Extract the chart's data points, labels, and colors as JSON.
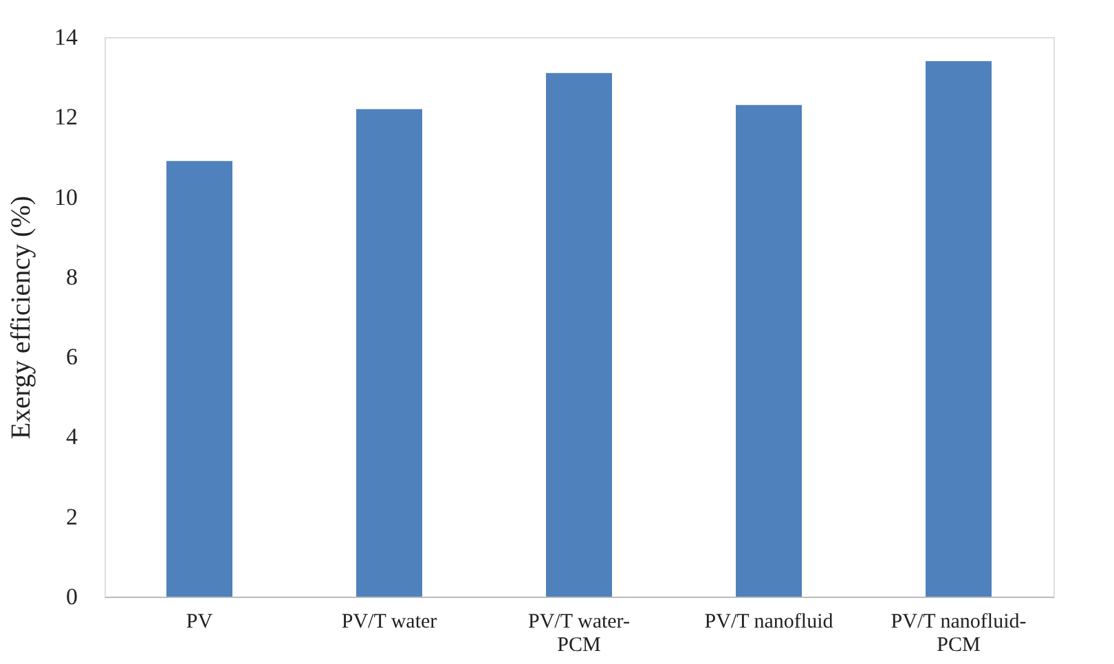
{
  "chart_data": {
    "type": "bar",
    "ylabel": "Exergy efficiency (%)",
    "categories": [
      "PV",
      "PV/T  water",
      "PV/T water-PCM",
      "PV/T nanofluid",
      "PV/T nanofluid-PCM"
    ],
    "values": [
      10.9,
      12.2,
      13.1,
      12.3,
      13.4
    ],
    "color": "#4f81bd",
    "ylim": [
      0,
      14
    ],
    "yticks": [
      0,
      2,
      4,
      6,
      8,
      10,
      12,
      14
    ],
    "grid": false
  }
}
